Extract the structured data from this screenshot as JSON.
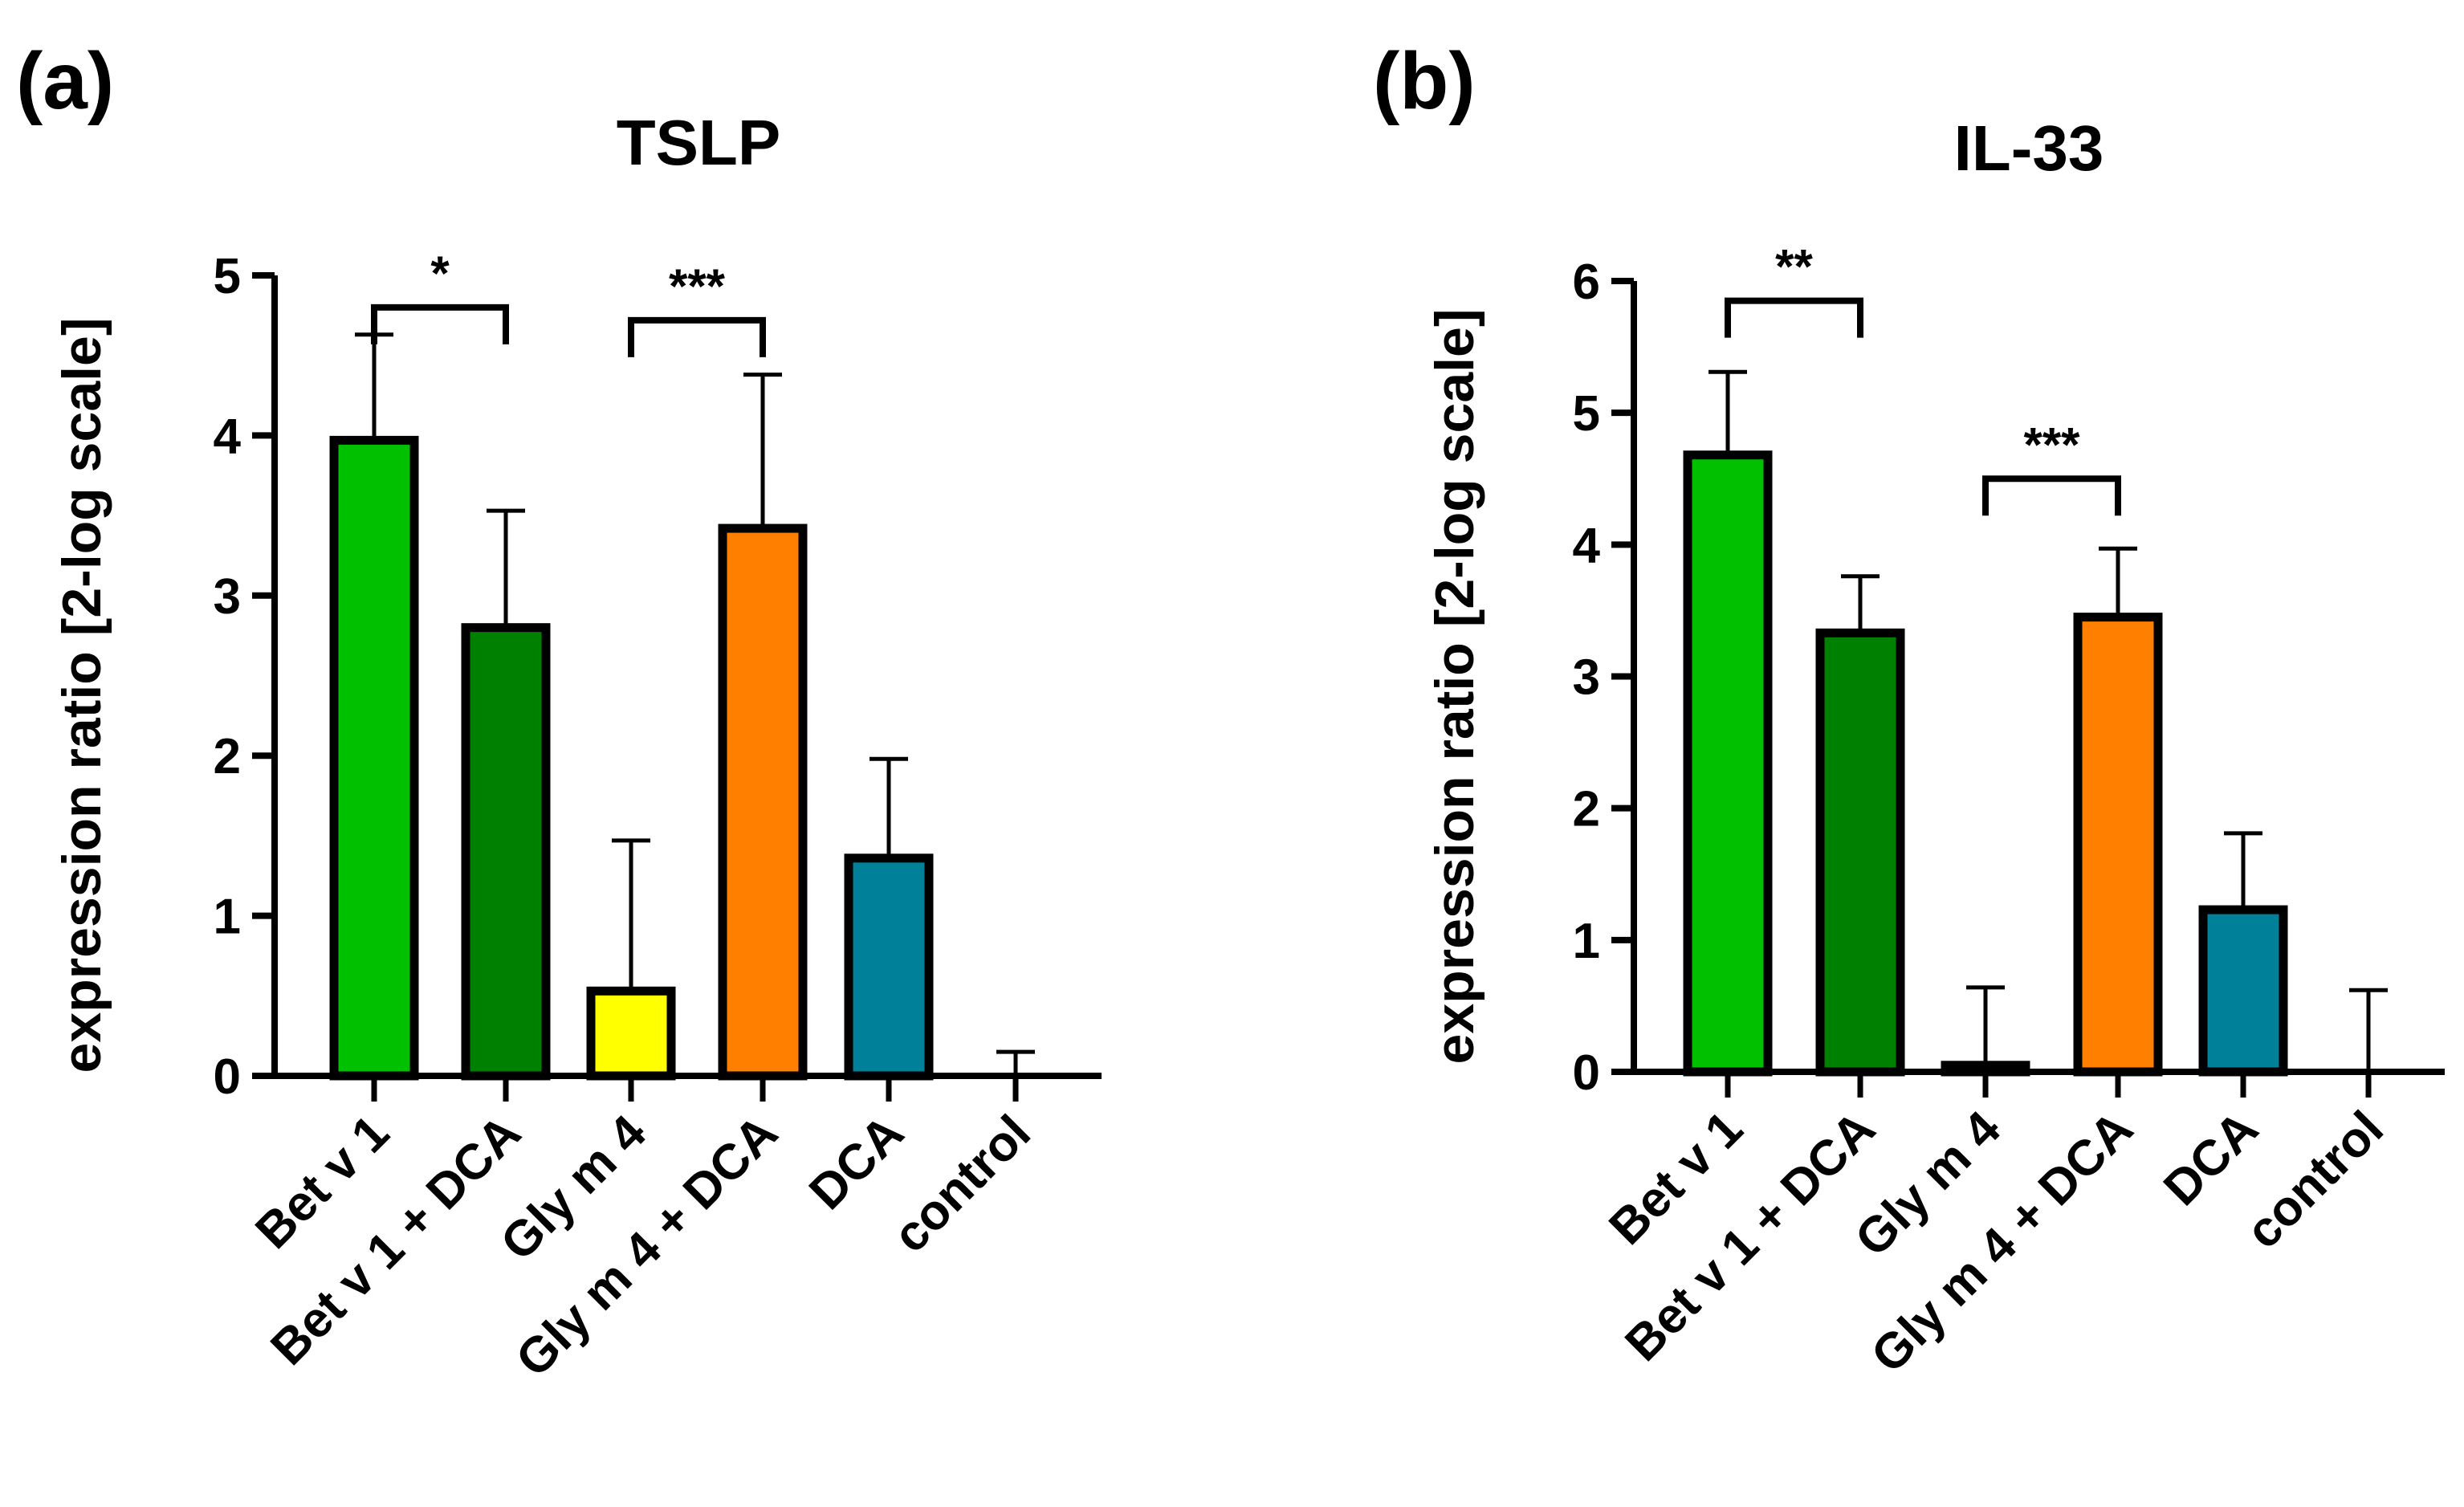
{
  "panel_labels": [
    "(a)",
    "(b)"
  ],
  "chart_data": [
    {
      "type": "bar",
      "title": "TSLP",
      "xlabel": "",
      "ylabel": "expression ratio [2-log scale]",
      "ylim": [
        0,
        5
      ],
      "yticks": [
        0,
        1,
        2,
        3,
        4,
        5
      ],
      "categories": [
        "Bet v 1",
        "Bet v 1 + DCA",
        "Gly m 4",
        "Gly m 4 + DCA",
        "DCA",
        "control"
      ],
      "values": [
        3.97,
        2.8,
        0.53,
        3.42,
        1.36,
        0.0
      ],
      "error_upper": [
        4.63,
        3.53,
        1.47,
        4.38,
        1.98,
        0.15
      ],
      "colors": [
        "#00c000",
        "#008000",
        "#ffff00",
        "#ff8000",
        "#008099",
        "#ffffff"
      ],
      "significance": [
        {
          "from": 0,
          "to": 1,
          "label": "*",
          "level": 4.8
        },
        {
          "from": 2,
          "to": 3,
          "label": "***",
          "level": 4.72
        }
      ]
    },
    {
      "type": "bar",
      "title": "IL-33",
      "xlabel": "",
      "ylabel": "expression ratio [2-log scale]",
      "ylim": [
        0,
        6
      ],
      "yticks": [
        0,
        1,
        2,
        3,
        4,
        5,
        6
      ],
      "categories": [
        "Bet v 1",
        "Bet v 1 + DCA",
        "Gly m 4",
        "Gly m 4 + DCA",
        "DCA",
        "control"
      ],
      "values": [
        4.68,
        3.33,
        0.05,
        3.45,
        1.23,
        0.0
      ],
      "error_upper": [
        5.31,
        3.76,
        0.64,
        3.97,
        1.81,
        0.62
      ],
      "colors": [
        "#00c000",
        "#008000",
        "#ffff00",
        "#ff8000",
        "#008099",
        "#ffffff"
      ],
      "significance": [
        {
          "from": 0,
          "to": 1,
          "label": "**",
          "level": 5.85
        },
        {
          "from": 2,
          "to": 3,
          "label": "***",
          "level": 4.5
        }
      ]
    }
  ]
}
